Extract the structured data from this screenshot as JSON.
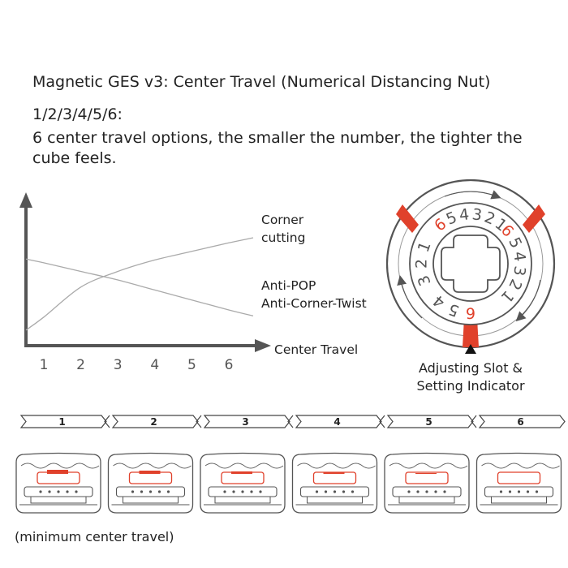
{
  "title": "Magnetic GES v3: Center Travel (Numerical Distancing Nut)",
  "options_heading": "1/2/3/4/5/6:",
  "description": "6 center travel options, the smaller the number, the tighter the cube feels.",
  "chart_data": {
    "type": "line",
    "title": "",
    "xlabel": "Center Travel",
    "ylabel": "",
    "x": [
      1,
      2,
      3,
      4,
      5,
      6
    ],
    "ylim": [
      0,
      1
    ],
    "grid": false,
    "series": [
      {
        "name": "Corner cutting",
        "values": [
          0.2,
          0.41,
          0.52,
          0.6,
          0.66,
          0.72
        ]
      },
      {
        "name": "Anti-POP Anti-Corner-Twist",
        "values": [
          0.58,
          0.52,
          0.46,
          0.39,
          0.32,
          0.25
        ]
      }
    ]
  },
  "series_labels": {
    "corner": [
      "Corner",
      "cutting"
    ],
    "antipop": [
      "Anti-POP",
      "Anti-Corner-Twist"
    ]
  },
  "dial": {
    "numbers_top": [
      "6",
      "5",
      "4",
      "3",
      "2",
      "1"
    ],
    "numbers_right": [
      "6",
      "5",
      "4",
      "3",
      "2",
      "1"
    ],
    "numbers_left": [
      "3",
      "2",
      "1"
    ],
    "numbers_bottom": [
      "6",
      "5",
      "4"
    ],
    "indicator_label": [
      "Adjusting Slot &",
      "Setting Indicator"
    ],
    "accent_color": "#e0412b"
  },
  "positions": [
    "1",
    "2",
    "3",
    "4",
    "5",
    "6"
  ],
  "caption": "(minimum center travel)"
}
